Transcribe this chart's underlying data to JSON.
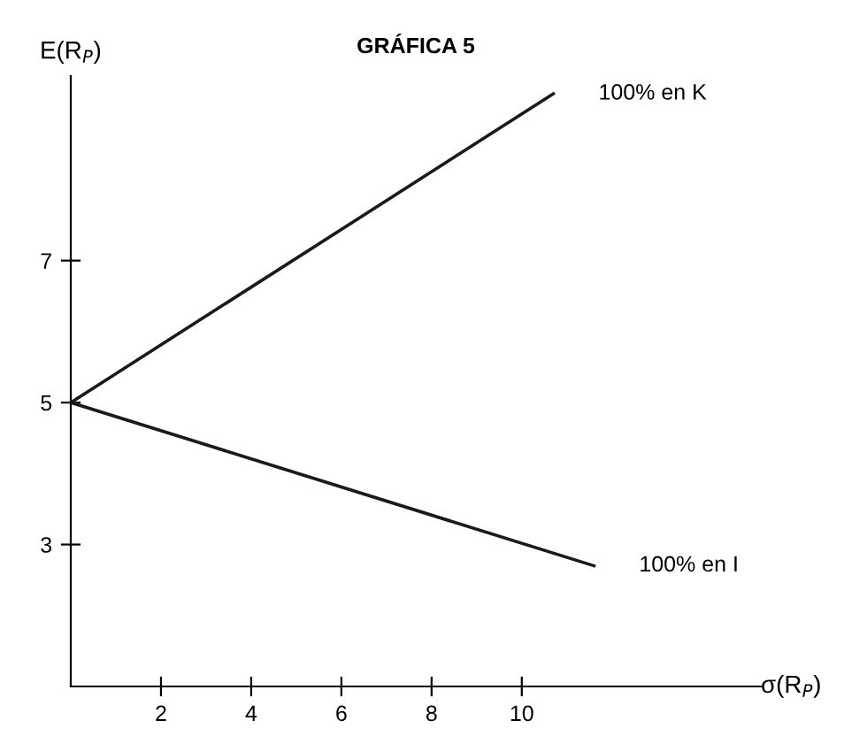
{
  "chart_data": {
    "type": "line",
    "title": "GRÁFICA 5",
    "xlabel": "σ(R$_{P}$)",
    "ylabel": "E(R$_{P}$)",
    "series": [
      {
        "name": "100% en K",
        "color": "#1a1a1a",
        "x": [
          0,
          10.7
        ],
        "values": [
          5,
          9.35
        ]
      },
      {
        "name": "100% en I",
        "color": "#1a1a1a",
        "x": [
          0,
          11.6
        ],
        "values": [
          5,
          2.7
        ]
      }
    ],
    "xlim": [
      0,
      15.3
    ],
    "ylim": [
      1,
      9.6
    ],
    "xticks": [
      2,
      4,
      6,
      8,
      10
    ],
    "yticks": [
      3,
      5,
      7
    ],
    "grid": false,
    "legend": false,
    "marker": "none",
    "line_style": "solid"
  }
}
